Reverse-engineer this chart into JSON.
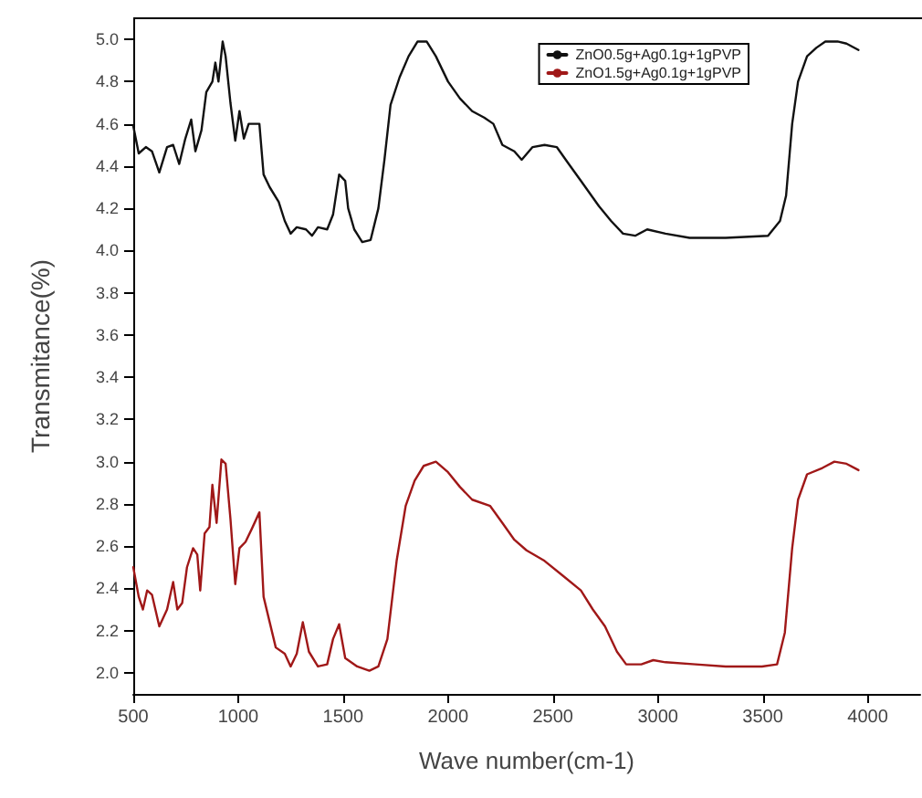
{
  "chart_data": {
    "type": "line",
    "xlabel": "Wave number(cm-1)",
    "ylabel": "Transmitance(%)",
    "xlim": [
      500,
      4250
    ],
    "xticks": [
      500,
      1000,
      1500,
      2000,
      2500,
      3000,
      3500,
      4000
    ],
    "ylim": [
      1.9,
      5.1
    ],
    "yticks": [
      {
        "value": 2.0,
        "label": "2.0"
      },
      {
        "value": 2.2,
        "label": "2.2"
      },
      {
        "value": 2.4,
        "label": "2.4"
      },
      {
        "value": 2.6,
        "label": "2.6"
      },
      {
        "value": 2.8,
        "label": "2.8"
      },
      {
        "value": 3.0,
        "label": "3.0"
      },
      {
        "value": 3.2,
        "label": "3.2"
      },
      {
        "value": 3.4,
        "label": "3.4"
      },
      {
        "value": 3.6,
        "label": "3.6"
      },
      {
        "value": 3.8,
        "label": "3.8"
      },
      {
        "value": 4.0,
        "label": "4.0"
      },
      {
        "value": 4.2,
        "label": "4.2"
      },
      {
        "value": 4.4,
        "label": "4.4"
      },
      {
        "value": 4.6,
        "label": "4.6"
      },
      {
        "value": 4.8,
        "label": "4.8"
      },
      {
        "value": 5.0,
        "label": "5.0"
      }
    ],
    "grid": false,
    "legend": "top right",
    "marker": "none",
    "line_style": "solid",
    "series": [
      {
        "name": "ZnO0.5g+Ag0.1g+1gPVP",
        "color": "#111111",
        "x": [
          500,
          526,
          560,
          589,
          624,
          661,
          690,
          719,
          748,
          776,
          796,
          825,
          848,
          877,
          891,
          906,
          926,
          940,
          963,
          986,
          1006,
          1027,
          1050,
          1101,
          1121,
          1150,
          1193,
          1222,
          1250,
          1279,
          1323,
          1352,
          1380,
          1424,
          1452,
          1481,
          1510,
          1524,
          1553,
          1591,
          1631,
          1668,
          1697,
          1726,
          1769,
          1812,
          1855,
          1898,
          1942,
          2000,
          2057,
          2115,
          2172,
          2216,
          2259,
          2316,
          2351,
          2403,
          2460,
          2518,
          2575,
          2633,
          2719,
          2777,
          2834,
          2892,
          2949,
          3036,
          3151,
          3323,
          3525,
          3582,
          3611,
          3640,
          3668,
          3711,
          3755,
          3798,
          3856,
          3899,
          3956
        ],
        "values": [
          4.59,
          4.46,
          4.49,
          4.47,
          4.37,
          4.49,
          4.5,
          4.41,
          4.53,
          4.62,
          4.47,
          4.57,
          4.75,
          4.8,
          4.89,
          4.8,
          4.99,
          4.92,
          4.7,
          4.52,
          4.66,
          4.53,
          4.6,
          4.6,
          4.36,
          4.3,
          4.23,
          4.14,
          4.08,
          4.11,
          4.1,
          4.07,
          4.11,
          4.1,
          4.17,
          4.36,
          4.33,
          4.2,
          4.1,
          4.04,
          4.05,
          4.2,
          4.43,
          4.69,
          4.82,
          4.92,
          4.99,
          4.99,
          4.92,
          4.8,
          4.72,
          4.66,
          4.63,
          4.6,
          4.5,
          4.47,
          4.43,
          4.49,
          4.5,
          4.49,
          4.41,
          4.33,
          4.21,
          4.14,
          4.08,
          4.07,
          4.1,
          4.08,
          4.06,
          4.06,
          4.07,
          4.14,
          4.26,
          4.6,
          4.8,
          4.92,
          4.96,
          4.99,
          4.99,
          4.98,
          4.95
        ]
      },
      {
        "name": "ZnO1.5g+Ag0.1g+1gPVP",
        "color": "#a01818",
        "x": [
          500,
          526,
          546,
          566,
          589,
          624,
          661,
          690,
          710,
          733,
          756,
          785,
          805,
          819,
          840,
          863,
          877,
          897,
          920,
          940,
          963,
          986,
          1006,
          1035,
          1064,
          1101,
          1121,
          1150,
          1179,
          1222,
          1250,
          1279,
          1308,
          1337,
          1380,
          1424,
          1452,
          1481,
          1510,
          1567,
          1625,
          1668,
          1711,
          1755,
          1798,
          1841,
          1884,
          1942,
          2000,
          2057,
          2115,
          2201,
          2259,
          2316,
          2374,
          2460,
          2547,
          2633,
          2690,
          2748,
          2805,
          2849,
          2921,
          2978,
          3036,
          3180,
          3323,
          3496,
          3568,
          3605,
          3640,
          3668,
          3711,
          3784,
          3841,
          3899,
          3956
        ],
        "values": [
          2.5,
          2.36,
          2.3,
          2.39,
          2.37,
          2.22,
          2.3,
          2.43,
          2.3,
          2.33,
          2.5,
          2.59,
          2.56,
          2.39,
          2.66,
          2.69,
          2.89,
          2.71,
          3.01,
          2.99,
          2.73,
          2.42,
          2.59,
          2.62,
          2.68,
          2.76,
          2.36,
          2.24,
          2.12,
          2.09,
          2.03,
          2.09,
          2.24,
          2.1,
          2.03,
          2.04,
          2.16,
          2.23,
          2.07,
          2.03,
          2.01,
          2.03,
          2.16,
          2.53,
          2.79,
          2.91,
          2.98,
          3.0,
          2.95,
          2.88,
          2.82,
          2.79,
          2.71,
          2.63,
          2.58,
          2.53,
          2.46,
          2.39,
          2.3,
          2.22,
          2.1,
          2.04,
          2.04,
          2.06,
          2.05,
          2.04,
          2.03,
          2.03,
          2.04,
          2.19,
          2.59,
          2.82,
          2.94,
          2.97,
          3.0,
          2.99,
          2.96
        ]
      }
    ]
  }
}
